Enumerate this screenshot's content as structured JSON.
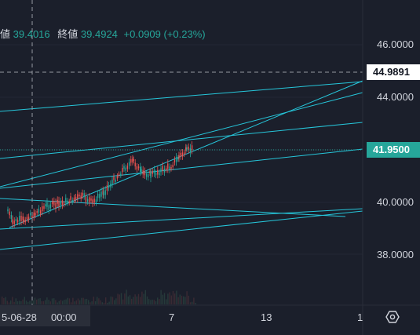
{
  "ohlc": {
    "fragment_label": "値",
    "high_value": "39.4016",
    "close_label": "終値",
    "close_value": "39.4924",
    "change": "+0.0909 (+0.23%)"
  },
  "price_axis": {
    "ticks": [
      "46.0000",
      "44.0000",
      "40.0000",
      "38.0000"
    ],
    "crosshair_price": "44.9891",
    "last_price": "41.9500"
  },
  "time_axis": {
    "crosshair_date": "5-06-28",
    "crosshair_time": "00:00",
    "ticks": [
      "7",
      "13",
      "1"
    ]
  },
  "colors": {
    "background": "#1b1f2b",
    "trendline": "#26c6da",
    "up": "#26a69a",
    "down": "#ef5350",
    "last_price_bg": "#26a69a"
  },
  "icons": {
    "settings": "hexagon-settings-icon"
  },
  "chart_data": {
    "type": "candlestick",
    "ylim": [
      36.0,
      47.0
    ],
    "last_price": 41.95,
    "crosshair_price": 44.9891,
    "x_ticks": [
      "7",
      "13",
      "1"
    ],
    "y_ticks": [
      46.0,
      44.0,
      40.0,
      38.0
    ],
    "trend_level": 41.95
  }
}
